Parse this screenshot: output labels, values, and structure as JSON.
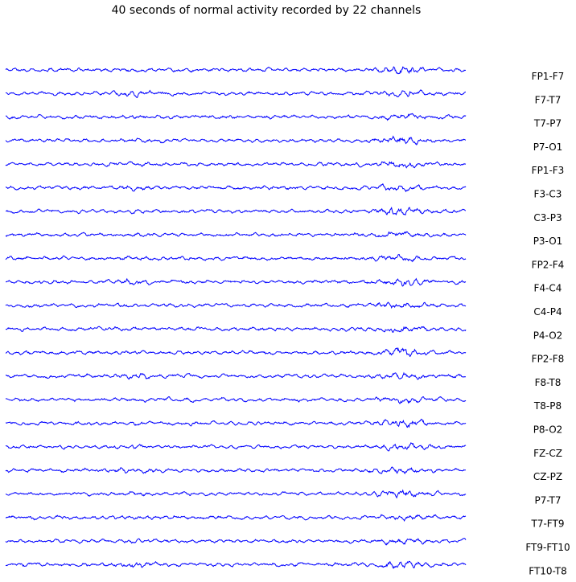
{
  "chart_data": {
    "type": "line",
    "title": "40 seconds of normal activity recorded by 22 channels",
    "xlabel": "",
    "ylabel": "",
    "grid": false,
    "series_color": "#0000ff",
    "duration_seconds": 40,
    "channels": [
      "FP1-F7",
      "F7-T7",
      "T7-P7",
      "P7-O1",
      "FP1-F3",
      "F3-C3",
      "C3-P3",
      "P3-O1",
      "FP2-F4",
      "F4-C4",
      "C4-P4",
      "P4-O2",
      "FP2-F8",
      "F8-T8",
      "T8-P8",
      "P8-O2",
      "FZ-CZ",
      "CZ-PZ",
      "P7-T7",
      "T7-FT9",
      "FT9-FT10",
      "FT10-T8"
    ]
  }
}
